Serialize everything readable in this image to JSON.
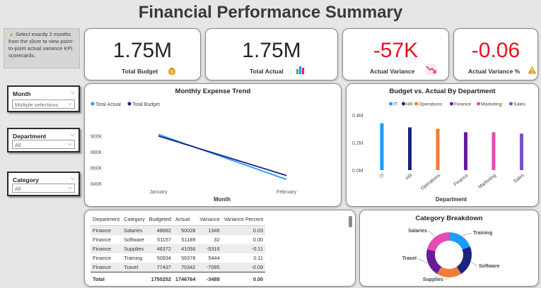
{
  "title": "Financial Performance Summary",
  "note": "Select exactly 2 months from the slicer to view point-to-point actual variance KPI scorecards.",
  "kpis": {
    "total_budget": {
      "value": "1.75M",
      "label": "Total Budget",
      "color": "#252423"
    },
    "total_actual": {
      "value": "1.75M",
      "label": "Total Actual",
      "color": "#252423"
    },
    "actual_variance": {
      "value": "-57K",
      "label": "Actual Variance",
      "color": "#e81123"
    },
    "actual_variance_pct": {
      "value": "-0.06",
      "label": "Actual Variance %",
      "color": "#e81123"
    }
  },
  "slicers": [
    {
      "label": "Month",
      "value": "Multiple selections"
    },
    {
      "label": "Department",
      "value": "All"
    },
    {
      "label": "Category",
      "value": "All"
    }
  ],
  "chart_data": [
    {
      "type": "line",
      "title": "Monthly Expense Trend",
      "xlabel": "Month",
      "ylabel": "",
      "categories": [
        "January",
        "February"
      ],
      "ylim": [
        830000,
        930000
      ],
      "yticks": [
        "840K",
        "860K",
        "880K",
        "900K"
      ],
      "ytick_values": [
        840000,
        860000,
        880000,
        900000
      ],
      "legend": "top-left",
      "series": [
        {
          "name": "Total Actual",
          "values": [
            902000,
            845000
          ],
          "color": "#1e9bff"
        },
        {
          "name": "Total Budget",
          "values": [
            900000,
            850000
          ],
          "color": "#1a237e"
        }
      ]
    },
    {
      "type": "bar",
      "title": "Budget vs. Actual By Department",
      "xlabel": "Department",
      "ylabel": "",
      "categories": [
        "IT",
        "HR",
        "Operations",
        "Finance",
        "Marketing",
        "Sales"
      ],
      "values": [
        340000,
        310000,
        300000,
        275000,
        275000,
        265000
      ],
      "colors": [
        "#1e9bff",
        "#1a237e",
        "#f07d3a",
        "#6a1b9a",
        "#e44bb4",
        "#7b4fc9"
      ],
      "ylim": [
        0,
        420000
      ],
      "yticks": [
        "0.0M",
        "0.2M",
        "0.4M"
      ],
      "ytick_values": [
        0,
        200000,
        400000
      ],
      "legend": "top"
    },
    {
      "type": "pie",
      "title": "Category Breakdown",
      "categories": [
        "Training",
        "Software",
        "Supplies",
        "Travel",
        "Salaries"
      ],
      "values": [
        19,
        22,
        18,
        20,
        21
      ],
      "colors": [
        "#1e9bff",
        "#1a237e",
        "#f07d3a",
        "#6a1b9a",
        "#e44bb4"
      ]
    }
  ],
  "table": {
    "columns": [
      "Department",
      "Category",
      "Budgeted",
      "Actual",
      "Variance",
      "Variance Percent"
    ],
    "rows": [
      [
        "Finance",
        "Salaries",
        "48682",
        "50028",
        "1346",
        "0.03"
      ],
      [
        "Finance",
        "Software",
        "51157",
        "51189",
        "32",
        "0.00"
      ],
      [
        "Finance",
        "Supplies",
        "46372",
        "41056",
        "-5316",
        "-0.11"
      ],
      [
        "Finance",
        "Training",
        "50934",
        "56378",
        "5444",
        "0.11"
      ],
      [
        "Finance",
        "Travel",
        "77437",
        "70342",
        "-7095",
        "-0.09"
      ]
    ],
    "total": [
      "Total",
      "",
      "1750252",
      "1746764",
      "-3488",
      "0.00"
    ]
  }
}
